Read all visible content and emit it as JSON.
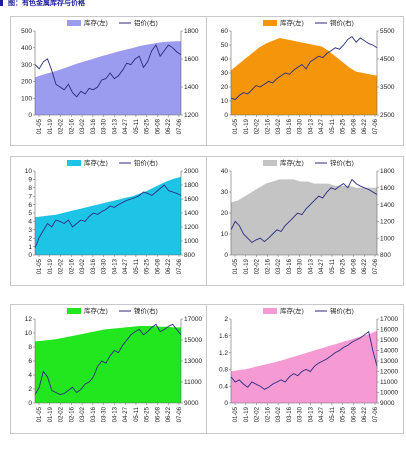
{
  "page": {
    "header_text": "图：有色金属库存与价格"
  },
  "x_tick_labels": [
    "01-05",
    "01-19",
    "02-02",
    "02-16",
    "03-02",
    "03-16",
    "03-30",
    "04-13",
    "04-27",
    "05-11",
    "05-25",
    "06-08",
    "06-22",
    "07-06"
  ],
  "chart_data": [
    {
      "type": "area-line",
      "legend": [
        "库存(左)",
        "铝价(右)"
      ],
      "legend_position": "top",
      "area_color": "#9b9bf0",
      "line_color": "#2b2b82",
      "y_left": {
        "ticks": [
          0,
          100,
          200,
          300,
          400,
          500
        ],
        "range": [
          0,
          500
        ]
      },
      "y_right": {
        "ticks": [
          1200,
          1400,
          1600,
          1800
        ],
        "range": [
          1200,
          1800
        ]
      },
      "inventory": [
        225,
        238,
        250,
        262,
        275,
        290,
        305,
        318,
        330,
        343,
        355,
        366,
        378,
        388,
        398,
        410,
        418,
        425,
        432,
        436,
        438,
        440
      ],
      "price": [
        1560,
        1530,
        1580,
        1600,
        1520,
        1420,
        1400,
        1380,
        1420,
        1360,
        1330,
        1370,
        1350,
        1390,
        1380,
        1400,
        1450,
        1460,
        1500,
        1460,
        1480,
        1520,
        1570,
        1560,
        1600,
        1620,
        1540,
        1580,
        1660,
        1700,
        1620,
        1660,
        1700,
        1680,
        1650,
        1630
      ]
    },
    {
      "type": "area-line",
      "legend": [
        "库存(左)",
        "铜价(右)"
      ],
      "legend_position": "top",
      "area_color": "#f5960a",
      "line_color": "#2b2b82",
      "y_left": {
        "ticks": [
          0,
          10,
          20,
          30,
          40,
          50,
          60
        ],
        "range": [
          0,
          60
        ]
      },
      "y_right": {
        "ticks": [
          2500,
          3500,
          4500,
          5500
        ],
        "range": [
          2500,
          5500
        ]
      },
      "inventory": [
        32,
        36,
        40,
        44,
        48,
        51,
        53,
        55,
        54,
        53,
        52,
        51,
        50,
        49,
        46,
        42,
        38,
        34,
        31,
        30,
        29,
        28
      ],
      "price": [
        3100,
        3050,
        3200,
        3300,
        3250,
        3400,
        3550,
        3500,
        3600,
        3700,
        3650,
        3800,
        3900,
        4000,
        3950,
        4100,
        4200,
        4300,
        4150,
        4400,
        4500,
        4600,
        4550,
        4700,
        4800,
        4900,
        4850,
        5000,
        5200,
        5300,
        5100,
        5250,
        5150,
        5050,
        5000,
        4900
      ]
    },
    {
      "type": "area-line",
      "legend": [
        "库存(左)",
        "铅价(右)"
      ],
      "legend_position": "top",
      "area_color": "#1ec4e6",
      "line_color": "#2b2b82",
      "y_left": {
        "ticks": [
          0,
          1,
          2,
          3,
          4,
          5,
          6,
          7,
          8,
          9,
          10
        ],
        "range": [
          0,
          10
        ]
      },
      "y_right": {
        "ticks": [
          800,
          1000,
          1200,
          1400,
          1600,
          1800,
          2000
        ],
        "range": [
          800,
          2000
        ]
      },
      "inventory": [
        4.5,
        4.6,
        4.7,
        4.8,
        5.0,
        5.2,
        5.4,
        5.6,
        5.8,
        6.0,
        6.2,
        6.4,
        6.6,
        6.8,
        7.0,
        7.3,
        7.6,
        8.0,
        8.4,
        8.8,
        9.1,
        9.3
      ],
      "price": [
        900,
        1050,
        1150,
        1250,
        1200,
        1300,
        1280,
        1250,
        1300,
        1200,
        1250,
        1300,
        1280,
        1350,
        1400,
        1380,
        1420,
        1450,
        1500,
        1480,
        1520,
        1550,
        1580,
        1600,
        1620,
        1650,
        1700,
        1680,
        1650,
        1700,
        1750,
        1800,
        1720,
        1700,
        1680,
        1650
      ]
    },
    {
      "type": "area-line",
      "legend": [
        "库存(左)",
        "锌价(右)"
      ],
      "legend_position": "top",
      "area_color": "#c4c4c4",
      "line_color": "#2b2b82",
      "y_left": {
        "ticks": [
          0,
          10,
          20,
          30,
          40
        ],
        "range": [
          0,
          40
        ]
      },
      "y_right": {
        "ticks": [
          800,
          1000,
          1200,
          1400,
          1600,
          1800
        ],
        "range": [
          800,
          1800
        ]
      },
      "inventory": [
        25,
        26,
        28,
        30,
        32,
        34,
        35,
        36,
        36,
        36,
        35,
        35,
        34,
        34,
        34,
        33,
        33,
        33,
        32,
        32,
        32,
        32
      ],
      "price": [
        1100,
        1200,
        1150,
        1050,
        1000,
        950,
        980,
        1000,
        960,
        1000,
        1050,
        1100,
        1080,
        1150,
        1200,
        1250,
        1300,
        1280,
        1350,
        1400,
        1450,
        1500,
        1480,
        1550,
        1600,
        1580,
        1620,
        1650,
        1600,
        1700,
        1650,
        1620,
        1600,
        1580,
        1550,
        1520
      ]
    },
    {
      "type": "area-line",
      "legend": [
        "库存(左)",
        "镍价(右)"
      ],
      "legend_position": "top",
      "area_color": "#22e61e",
      "line_color": "#2b2b82",
      "y_left": {
        "ticks": [
          0,
          2,
          4,
          6,
          8,
          10,
          12
        ],
        "range": [
          0,
          12
        ]
      },
      "y_right": {
        "ticks": [
          9000,
          11000,
          13000,
          15000,
          17000
        ],
        "range": [
          9000,
          17000
        ]
      },
      "inventory": [
        8.8,
        8.9,
        9.0,
        9.1,
        9.3,
        9.5,
        9.7,
        9.9,
        10.1,
        10.3,
        10.5,
        10.6,
        10.7,
        10.8,
        10.9,
        11.0,
        11.0,
        11.0,
        10.9,
        10.9,
        10.8,
        10.8
      ],
      "price": [
        9800,
        10500,
        12000,
        11500,
        10200,
        10000,
        9800,
        9900,
        10200,
        10500,
        10000,
        10300,
        10800,
        11000,
        11500,
        12500,
        13000,
        12800,
        13500,
        14000,
        13800,
        14500,
        15000,
        15500,
        15800,
        16000,
        15500,
        15800,
        16200,
        16500,
        15800,
        16000,
        16300,
        16500,
        16000,
        15500
      ]
    },
    {
      "type": "area-line",
      "legend": [
        "库存(左)",
        "锡价(右)"
      ],
      "legend_position": "top",
      "area_color": "#f59ad2",
      "line_color": "#2b2b82",
      "y_left": {
        "ticks": [
          0,
          0.4,
          0.8,
          1.2,
          1.6,
          2
        ],
        "range": [
          0,
          2
        ]
      },
      "y_right": {
        "ticks": [
          9000,
          10000,
          11000,
          12000,
          13000,
          14000,
          15000,
          16000,
          17000
        ],
        "range": [
          9000,
          17000
        ]
      },
      "inventory": [
        0.75,
        0.78,
        0.8,
        0.84,
        0.88,
        0.92,
        0.96,
        1.0,
        1.05,
        1.1,
        1.15,
        1.2,
        1.25,
        1.3,
        1.35,
        1.4,
        1.45,
        1.5,
        1.55,
        1.6,
        1.65,
        1.72
      ],
      "price": [
        11500,
        11000,
        11200,
        10800,
        10500,
        11000,
        10800,
        10600,
        10300,
        10500,
        10800,
        11000,
        11200,
        11000,
        11500,
        11800,
        11600,
        12000,
        12200,
        12000,
        12500,
        12800,
        13000,
        13200,
        13500,
        13800,
        14000,
        14300,
        14500,
        14800,
        15000,
        15200,
        15500,
        15800,
        14000,
        12500
      ]
    }
  ]
}
